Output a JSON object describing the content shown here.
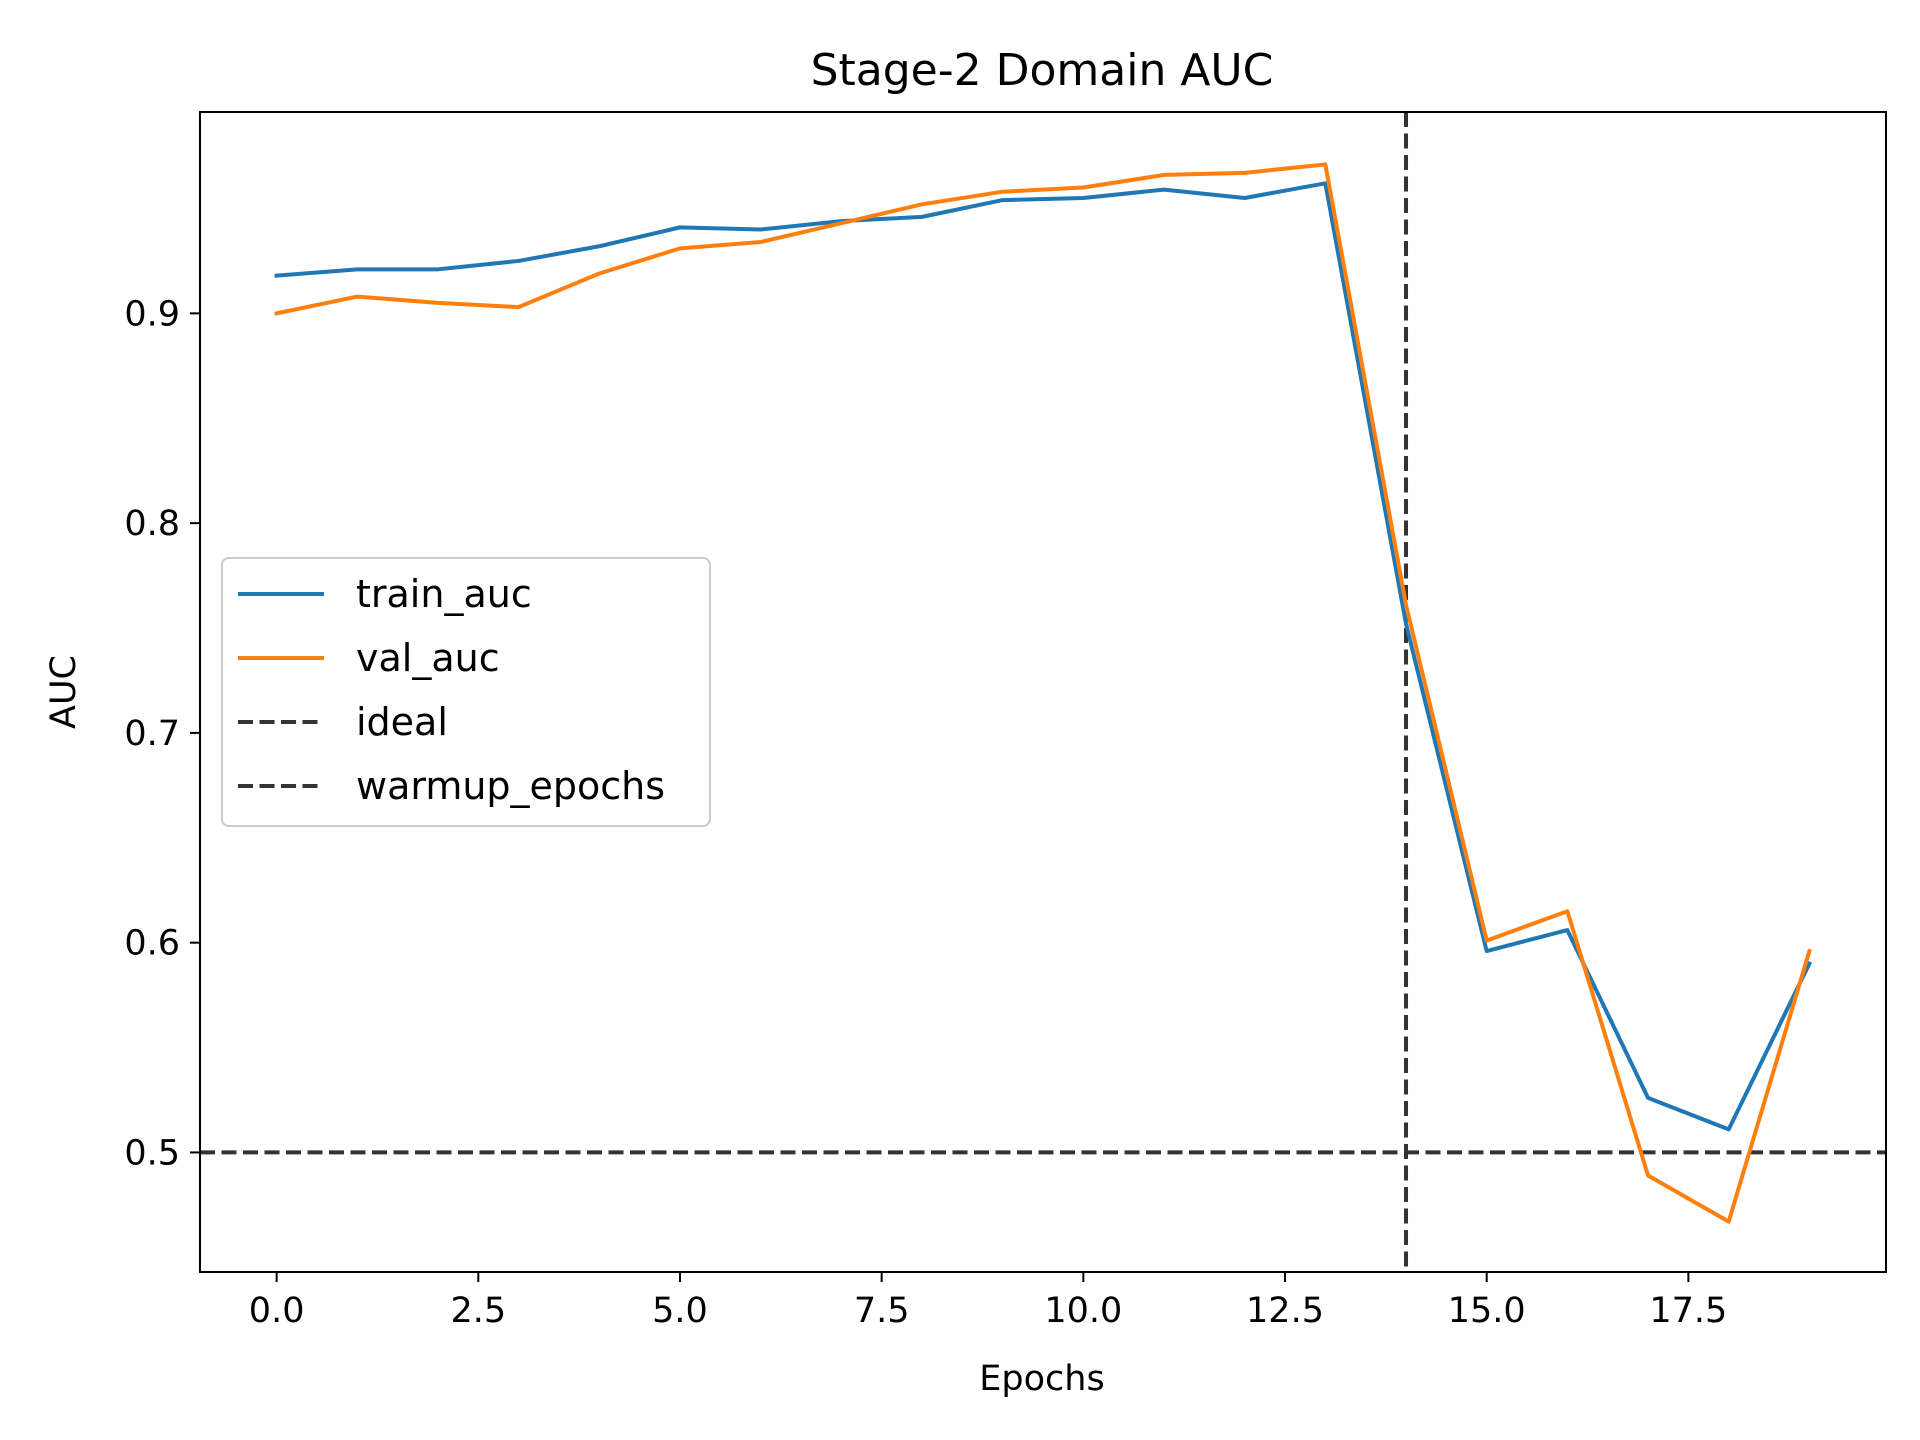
{
  "chart_data": {
    "type": "line",
    "title": "Stage-2 Domain AUC",
    "xlabel": "Epochs",
    "ylabel": "AUC",
    "xlim": [
      -0.95,
      19.95
    ],
    "ylim": [
      0.443,
      0.996
    ],
    "x_ticks": [
      0.0,
      2.5,
      5.0,
      7.5,
      10.0,
      12.5,
      15.0,
      17.5
    ],
    "x_tick_labels": [
      "0.0",
      "2.5",
      "5.0",
      "7.5",
      "10.0",
      "12.5",
      "15.0",
      "17.5"
    ],
    "y_ticks": [
      0.5,
      0.6,
      0.7,
      0.8,
      0.9
    ],
    "y_tick_labels": [
      "0.5",
      "0.6",
      "0.7",
      "0.8",
      "0.9"
    ],
    "grid": false,
    "legend_position": "center-left",
    "x": [
      0,
      1,
      2,
      3,
      4,
      5,
      6,
      7,
      8,
      9,
      10,
      11,
      12,
      13,
      14,
      15,
      16,
      17,
      18,
      19
    ],
    "series": [
      {
        "name": "train_auc",
        "color": "#1f77b4",
        "values": [
          0.918,
          0.921,
          0.921,
          0.925,
          0.932,
          0.941,
          0.94,
          0.944,
          0.946,
          0.954,
          0.955,
          0.959,
          0.955,
          0.962,
          0.752,
          0.596,
          0.606,
          0.526,
          0.511,
          0.59
        ]
      },
      {
        "name": "val_auc",
        "color": "#ff7f0e",
        "values": [
          0.9,
          0.908,
          0.905,
          0.903,
          0.919,
          0.931,
          0.934,
          0.943,
          0.952,
          0.958,
          0.96,
          0.966,
          0.967,
          0.971,
          0.761,
          0.601,
          0.615,
          0.489,
          0.467,
          0.596
        ]
      }
    ],
    "reference_lines": [
      {
        "name": "ideal",
        "orientation": "horizontal",
        "value": 0.5,
        "color": "#333333",
        "style": "dashed"
      },
      {
        "name": "warmup_epochs",
        "orientation": "vertical",
        "value": 14,
        "color": "#333333",
        "style": "dashed"
      }
    ],
    "legend": [
      "train_auc",
      "val_auc",
      "ideal",
      "warmup_epochs"
    ]
  }
}
